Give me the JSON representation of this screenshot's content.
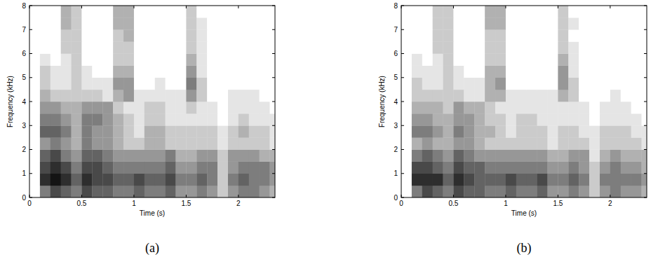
{
  "chart_data": [
    {
      "type": "heatmap",
      "xlabel": "Time (s)",
      "ylabel": "Frequency (kHz)",
      "label": "(a)",
      "xlim": [
        0,
        2.35
      ],
      "ylim": [
        0,
        8
      ],
      "xticks": [
        0,
        0.5,
        1,
        1.5,
        2
      ],
      "yticks": [
        0,
        1,
        2,
        3,
        4,
        5,
        6,
        7,
        8
      ],
      "xbins": [
        0,
        0.1,
        0.2,
        0.3,
        0.4,
        0.5,
        0.6,
        0.7,
        0.8,
        0.9,
        1,
        1.1,
        1.2,
        1.3,
        1.4,
        1.5,
        1.6,
        1.7,
        1.8,
        1.9,
        2,
        2.1,
        2.2,
        2.3,
        2.35
      ],
      "ybins": [
        0,
        0.5,
        1,
        1.5,
        2,
        2.5,
        3,
        3.5,
        4,
        4.5,
        5,
        5.5,
        6,
        6.5,
        7,
        7.5,
        8
      ],
      "zlim": [
        0,
        9
      ],
      "color": "#000000",
      "cells": [
        [
          0,
          5,
          7,
          6,
          5,
          7,
          6,
          6,
          5,
          5,
          6,
          5,
          5,
          6,
          4,
          4,
          5,
          4,
          2,
          4,
          5,
          5,
          4,
          3
        ],
        [
          0,
          8,
          9,
          8,
          6,
          8,
          7,
          7,
          6,
          6,
          7,
          6,
          6,
          7,
          5,
          5,
          6,
          5,
          2,
          5,
          6,
          5,
          5,
          4
        ],
        [
          0,
          7,
          8,
          7,
          5,
          7,
          7,
          6,
          5,
          5,
          5,
          5,
          5,
          6,
          4,
          4,
          5,
          5,
          2,
          4,
          5,
          5,
          5,
          4
        ],
        [
          0,
          6,
          7,
          5,
          4,
          6,
          6,
          5,
          4,
          4,
          4,
          4,
          4,
          5,
          3,
          3,
          4,
          4,
          2,
          4,
          4,
          4,
          3,
          3
        ],
        [
          0,
          4,
          5,
          4,
          3,
          5,
          4,
          4,
          3,
          2,
          2,
          3,
          3,
          2,
          2,
          2,
          2,
          2,
          1,
          2,
          2,
          2,
          2,
          1
        ],
        [
          0,
          6,
          6,
          5,
          3,
          5,
          4,
          4,
          3,
          2,
          1,
          3,
          3,
          2,
          2,
          2,
          2,
          2,
          1,
          2,
          3,
          2,
          2,
          1
        ],
        [
          0,
          5,
          5,
          4,
          3,
          5,
          5,
          4,
          3,
          2,
          1,
          2,
          2,
          1,
          1,
          1,
          1,
          1,
          0,
          1,
          2,
          1,
          1,
          1
        ],
        [
          0,
          4,
          4,
          3,
          3,
          4,
          4,
          4,
          2,
          1,
          1,
          2,
          2,
          1,
          1,
          2,
          1,
          1,
          0,
          1,
          1,
          1,
          1,
          0
        ],
        [
          0,
          3,
          2,
          2,
          2,
          2,
          2,
          1,
          3,
          4,
          1,
          1,
          1,
          1,
          1,
          4,
          2,
          0,
          0,
          1,
          1,
          1,
          0,
          0
        ],
        [
          0,
          2,
          1,
          1,
          2,
          1,
          1,
          1,
          4,
          4,
          0,
          0,
          1,
          0,
          0,
          5,
          2,
          0,
          0,
          0,
          0,
          0,
          0,
          0
        ],
        [
          0,
          2,
          1,
          1,
          2,
          1,
          0,
          0,
          3,
          3,
          0,
          0,
          0,
          0,
          0,
          4,
          1,
          0,
          0,
          0,
          0,
          0,
          0,
          0
        ],
        [
          0,
          1,
          0,
          1,
          2,
          0,
          0,
          0,
          2,
          2,
          0,
          0,
          0,
          0,
          0,
          3,
          1,
          0,
          0,
          0,
          0,
          0,
          0,
          0
        ],
        [
          0,
          0,
          0,
          2,
          2,
          0,
          0,
          0,
          2,
          2,
          0,
          0,
          0,
          0,
          0,
          2,
          1,
          0,
          0,
          0,
          0,
          0,
          0,
          0
        ],
        [
          0,
          0,
          0,
          2,
          2,
          0,
          0,
          0,
          2,
          3,
          0,
          0,
          0,
          0,
          0,
          2,
          1,
          0,
          0,
          0,
          0,
          0,
          0,
          0
        ],
        [
          0,
          0,
          0,
          3,
          2,
          0,
          0,
          0,
          3,
          3,
          0,
          0,
          0,
          0,
          0,
          2,
          1,
          0,
          0,
          0,
          0,
          0,
          0,
          0
        ],
        [
          0,
          0,
          0,
          3,
          2,
          0,
          0,
          0,
          3,
          3,
          0,
          0,
          0,
          0,
          0,
          2,
          0,
          0,
          0,
          0,
          0,
          0,
          0,
          0
        ]
      ]
    },
    {
      "type": "heatmap",
      "xlabel": "Time (s)",
      "ylabel": "Frequency (kHz)",
      "label": "(b)",
      "xlim": [
        0,
        2.35
      ],
      "ylim": [
        0,
        8
      ],
      "xticks": [
        0,
        0.5,
        1,
        1.5,
        2
      ],
      "yticks": [
        0,
        1,
        2,
        3,
        4,
        5,
        6,
        7,
        8
      ],
      "xbins": [
        0,
        0.1,
        0.2,
        0.3,
        0.4,
        0.5,
        0.6,
        0.7,
        0.8,
        0.9,
        1,
        1.1,
        1.2,
        1.3,
        1.4,
        1.5,
        1.6,
        1.7,
        1.8,
        1.9,
        2,
        2.1,
        2.2,
        2.3,
        2.35
      ],
      "ybins": [
        0,
        0.5,
        1,
        1.5,
        2,
        2.5,
        3,
        3.5,
        4,
        4.5,
        5,
        5.5,
        6,
        6.5,
        7,
        7.5,
        8
      ],
      "zlim": [
        0,
        9
      ],
      "color": "#000000",
      "cells": [
        [
          0,
          5,
          7,
          6,
          5,
          7,
          6,
          6,
          5,
          5,
          6,
          5,
          5,
          6,
          4,
          4,
          5,
          4,
          2,
          4,
          5,
          4,
          4,
          3
        ],
        [
          0,
          8,
          8,
          8,
          6,
          8,
          7,
          6,
          6,
          6,
          7,
          6,
          6,
          7,
          5,
          5,
          6,
          5,
          2,
          5,
          5,
          5,
          5,
          4
        ],
        [
          0,
          7,
          7,
          6,
          5,
          7,
          6,
          6,
          5,
          5,
          5,
          5,
          5,
          5,
          4,
          4,
          5,
          4,
          2,
          4,
          5,
          4,
          4,
          3
        ],
        [
          0,
          5,
          6,
          5,
          4,
          6,
          5,
          4,
          4,
          4,
          4,
          4,
          4,
          4,
          3,
          3,
          4,
          4,
          1,
          3,
          4,
          3,
          3,
          3
        ],
        [
          0,
          3,
          4,
          3,
          3,
          4,
          4,
          3,
          2,
          2,
          2,
          2,
          2,
          2,
          1,
          2,
          2,
          2,
          1,
          2,
          2,
          2,
          2,
          1
        ],
        [
          0,
          5,
          5,
          4,
          3,
          5,
          4,
          3,
          3,
          2,
          1,
          2,
          2,
          2,
          1,
          2,
          2,
          1,
          1,
          2,
          2,
          2,
          1,
          1
        ],
        [
          0,
          4,
          4,
          3,
          3,
          4,
          4,
          3,
          2,
          2,
          1,
          2,
          2,
          1,
          1,
          1,
          1,
          1,
          0,
          1,
          1,
          1,
          1,
          0
        ],
        [
          0,
          3,
          3,
          3,
          2,
          4,
          3,
          3,
          2,
          1,
          1,
          1,
          1,
          1,
          1,
          1,
          1,
          1,
          0,
          1,
          1,
          1,
          0,
          0
        ],
        [
          0,
          2,
          2,
          2,
          2,
          2,
          1,
          1,
          3,
          3,
          1,
          1,
          1,
          1,
          1,
          3,
          2,
          0,
          0,
          0,
          1,
          0,
          0,
          0
        ],
        [
          0,
          2,
          1,
          1,
          2,
          1,
          1,
          1,
          3,
          4,
          0,
          0,
          0,
          0,
          0,
          4,
          2,
          0,
          0,
          0,
          0,
          0,
          0,
          0
        ],
        [
          0,
          1,
          1,
          1,
          2,
          1,
          0,
          0,
          3,
          3,
          0,
          0,
          0,
          0,
          0,
          4,
          1,
          0,
          0,
          0,
          0,
          0,
          0,
          0
        ],
        [
          0,
          1,
          0,
          1,
          2,
          0,
          0,
          0,
          2,
          2,
          0,
          0,
          0,
          0,
          0,
          3,
          1,
          0,
          0,
          0,
          0,
          0,
          0,
          0
        ],
        [
          0,
          0,
          0,
          2,
          2,
          0,
          0,
          0,
          2,
          2,
          0,
          0,
          0,
          0,
          0,
          2,
          1,
          0,
          0,
          0,
          0,
          0,
          0,
          0
        ],
        [
          0,
          0,
          0,
          2,
          2,
          0,
          0,
          0,
          2,
          2,
          0,
          0,
          0,
          0,
          0,
          2,
          0,
          0,
          0,
          0,
          0,
          0,
          0,
          0
        ],
        [
          0,
          0,
          0,
          2,
          2,
          0,
          0,
          0,
          3,
          3,
          0,
          0,
          0,
          0,
          0,
          2,
          1,
          0,
          0,
          0,
          0,
          0,
          0,
          0
        ],
        [
          0,
          0,
          0,
          2,
          2,
          0,
          0,
          0,
          3,
          3,
          0,
          0,
          0,
          0,
          0,
          2,
          0,
          0,
          0,
          0,
          0,
          0,
          0,
          0
        ]
      ]
    }
  ]
}
